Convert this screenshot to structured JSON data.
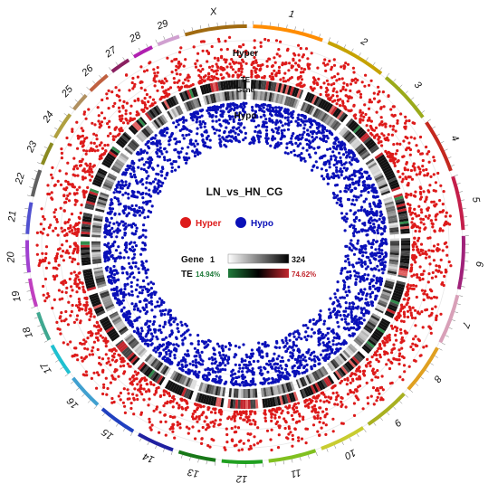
{
  "title": "LN_vs_HN_CG",
  "tracks": {
    "hyper_label": "Hyper",
    "te_label": "TE",
    "gene_label": "Gene",
    "hypo_label": "Hypo"
  },
  "legend": {
    "hyper": {
      "label": "Hyper",
      "color": "#dd1a1a"
    },
    "hypo": {
      "label": "Hypo",
      "color": "#0a10b8"
    }
  },
  "gene_scale": {
    "label": "Gene",
    "min": "1",
    "max": "324"
  },
  "te_scale": {
    "label": "TE",
    "min": "14.94%",
    "max": "74.62%",
    "min_color": "#1f7a3a",
    "max_color": "#c2262e"
  },
  "chromosomes": [
    {
      "name": "1",
      "color": "#ff8c00"
    },
    {
      "name": "2",
      "color": "#c6a200"
    },
    {
      "name": "3",
      "color": "#9aaa1a"
    },
    {
      "name": "4",
      "color": "#c4281e"
    },
    {
      "name": "5",
      "color": "#c41e4a"
    },
    {
      "name": "6",
      "color": "#a0227a"
    },
    {
      "name": "7",
      "color": "#d8a0b8"
    },
    {
      "name": "8",
      "color": "#e0a020"
    },
    {
      "name": "9",
      "color": "#a8b020"
    },
    {
      "name": "10",
      "color": "#c8cc30"
    },
    {
      "name": "11",
      "color": "#80c020"
    },
    {
      "name": "12",
      "color": "#20a020"
    },
    {
      "name": "13",
      "color": "#187818"
    },
    {
      "name": "14",
      "color": "#2020a0"
    },
    {
      "name": "15",
      "color": "#2040c0"
    },
    {
      "name": "16",
      "color": "#40a0d0"
    },
    {
      "name": "17",
      "color": "#20c0d0"
    },
    {
      "name": "18",
      "color": "#40a890"
    },
    {
      "name": "19",
      "color": "#c040c0"
    },
    {
      "name": "20",
      "color": "#a040d0"
    },
    {
      "name": "21",
      "color": "#5050d0"
    },
    {
      "name": "22",
      "color": "#606060"
    },
    {
      "name": "23",
      "color": "#8a8a20"
    },
    {
      "name": "24",
      "color": "#b0a040"
    },
    {
      "name": "25",
      "color": "#b09060"
    },
    {
      "name": "26",
      "color": "#c06040"
    },
    {
      "name": "27",
      "color": "#8a2060"
    },
    {
      "name": "28",
      "color": "#b020b0"
    },
    {
      "name": "29",
      "color": "#d0a0d0"
    },
    {
      "name": "X",
      "color": "#a06a10"
    }
  ]
}
